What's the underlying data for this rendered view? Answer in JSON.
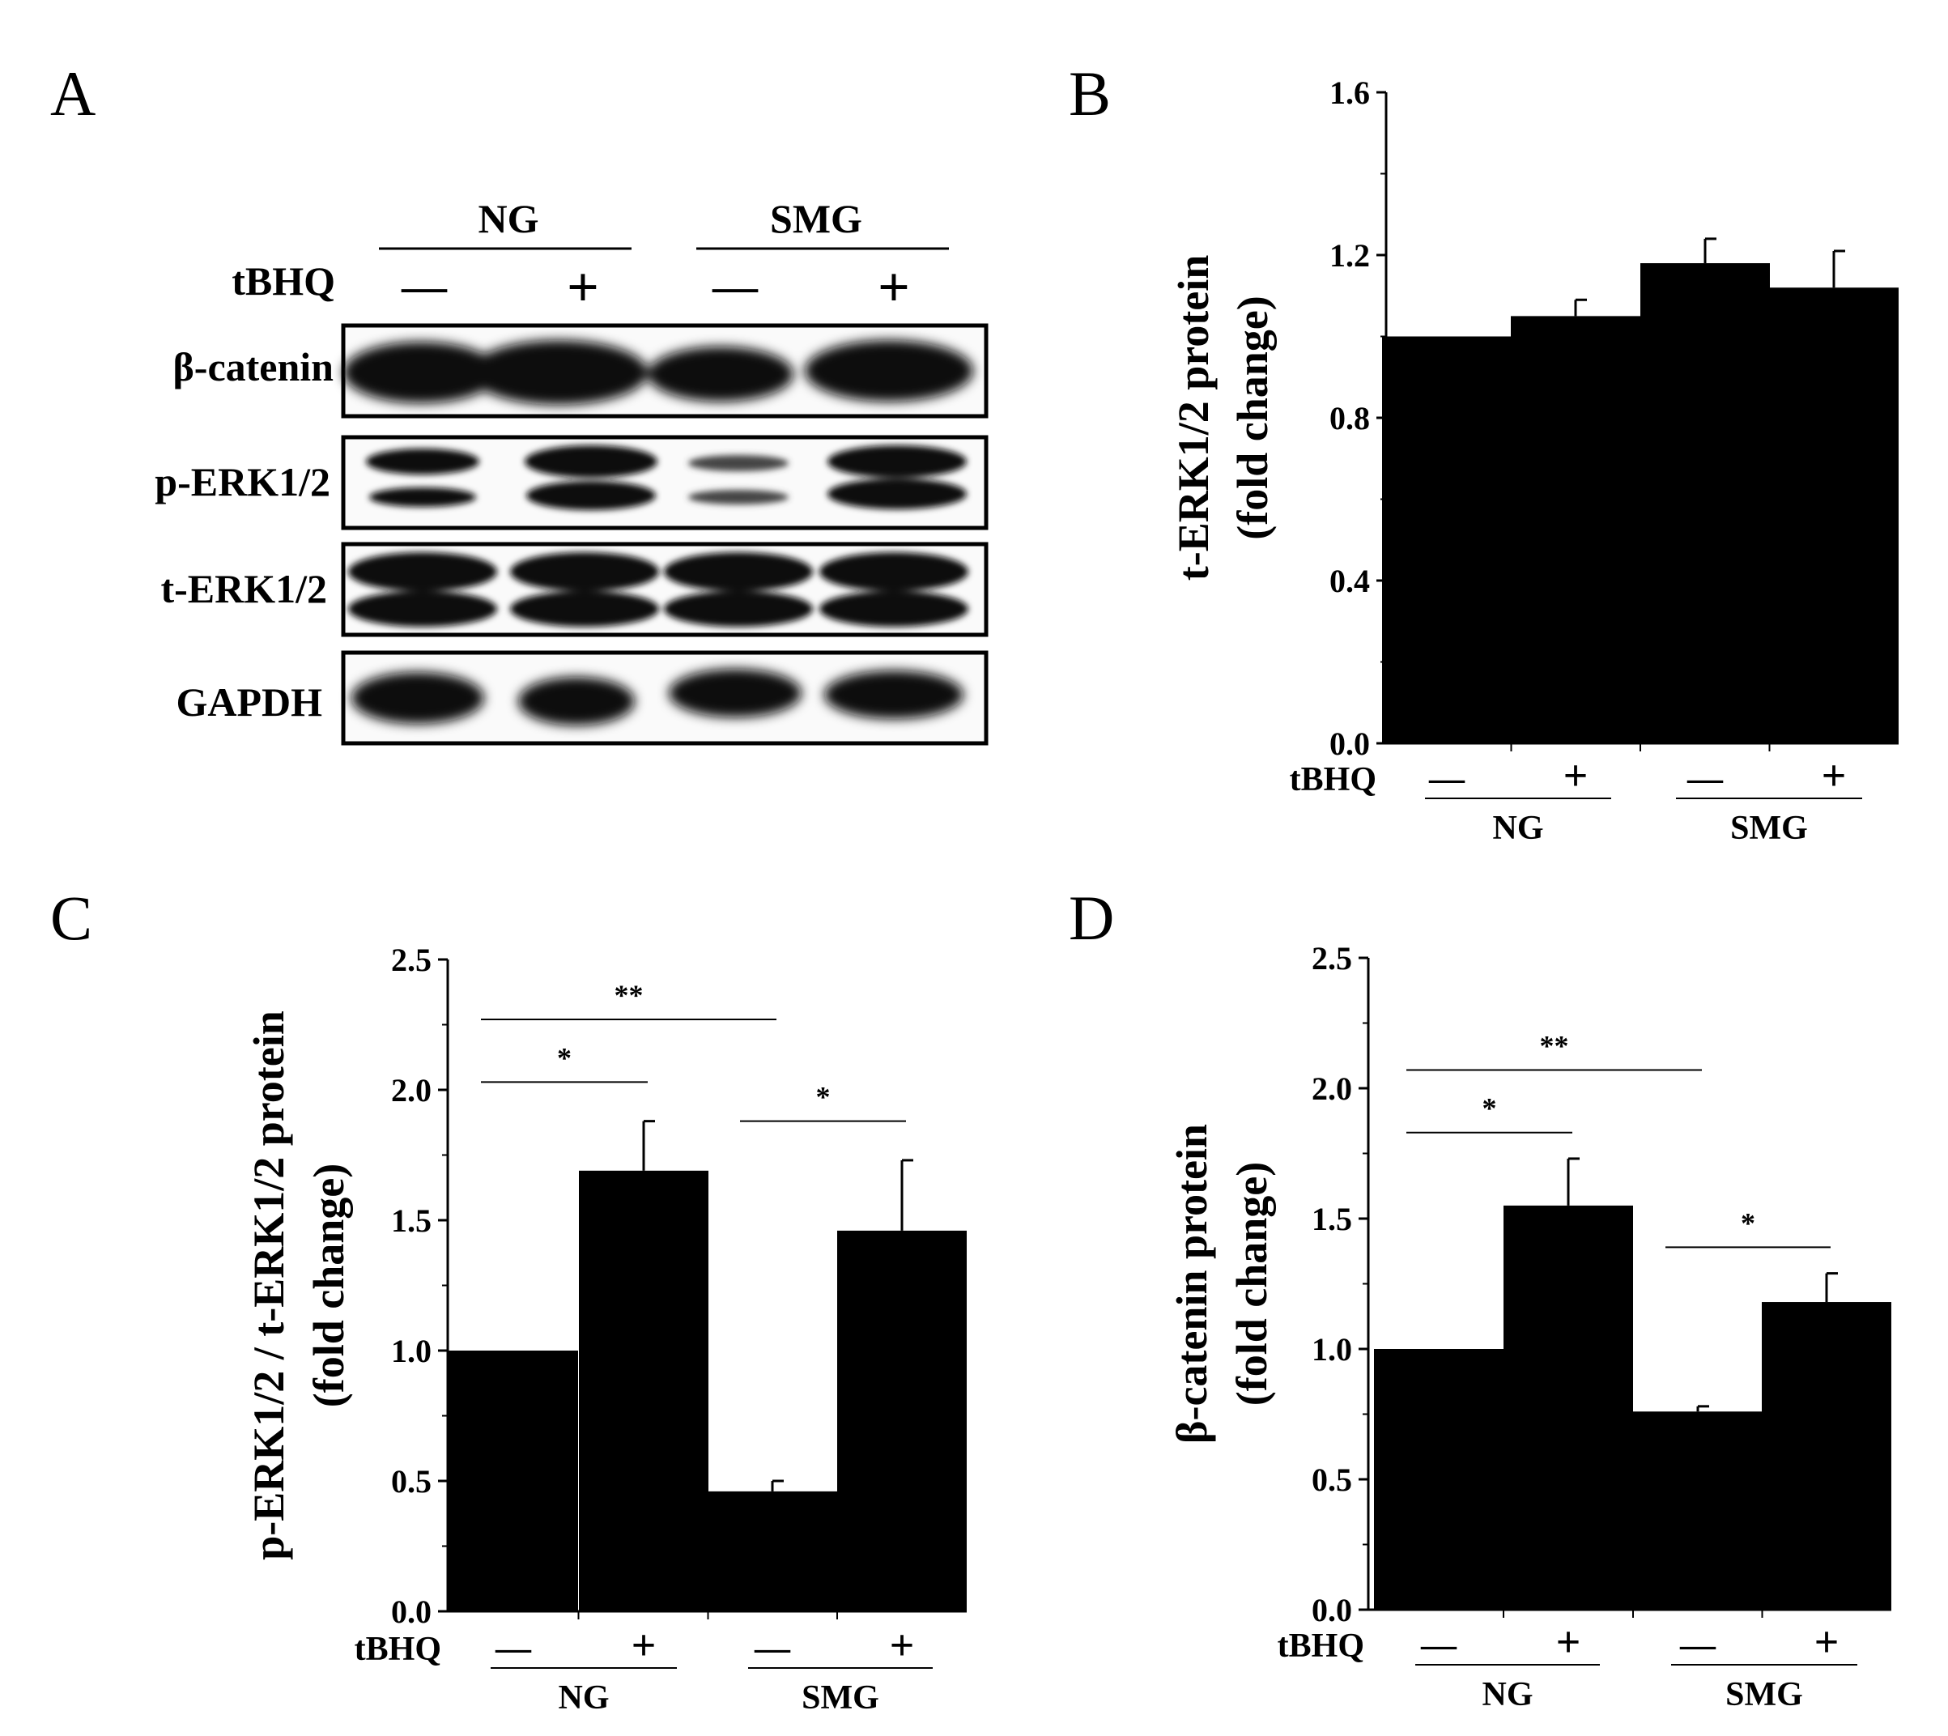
{
  "panels": {
    "A": {
      "letter": "A",
      "group_labels": [
        "NG",
        "SMG"
      ],
      "treatment_label": "tBHQ",
      "treatment_signs": [
        "—",
        "+",
        "—",
        "+"
      ],
      "blot_labels": [
        "β-catenin",
        "p-ERK1/2",
        "t-ERK1/2",
        "GAPDH"
      ]
    },
    "B": {
      "letter": "B"
    },
    "C": {
      "letter": "C"
    },
    "D": {
      "letter": "D"
    }
  },
  "chart_data": [
    {
      "panel": "B",
      "type": "bar",
      "categories": [
        "—",
        "+",
        "—",
        "+"
      ],
      "groups": [
        "NG",
        "SMG"
      ],
      "treatment_label": "tBHQ",
      "values": [
        1.0,
        1.05,
        1.18,
        1.12
      ],
      "errors": [
        0,
        0.04,
        0.06,
        0.09
      ],
      "ylabel": [
        "t-ERK1/2 protein",
        "(fold change)"
      ],
      "ylim": [
        0,
        1.6
      ],
      "yticks": [
        "0.0",
        "0.4",
        "0.8",
        "1.2",
        "1.6"
      ],
      "ytick_values": [
        0,
        0.4,
        0.8,
        1.2,
        1.6
      ],
      "significance": [],
      "bar_color": "#000000"
    },
    {
      "panel": "C",
      "type": "bar",
      "categories": [
        "—",
        "+",
        "—",
        "+"
      ],
      "groups": [
        "NG",
        "SMG"
      ],
      "treatment_label": "tBHQ",
      "values": [
        1.0,
        1.69,
        0.46,
        1.46
      ],
      "errors": [
        0,
        0.19,
        0.04,
        0.27
      ],
      "ylabel": [
        "p-ERK1/2 / t-ERK1/2 protein",
        "(fold change)"
      ],
      "ylim": [
        0,
        2.5
      ],
      "yticks": [
        "0.0",
        "0.5",
        "1.0",
        "1.5",
        "2.0",
        "2.5"
      ],
      "ytick_values": [
        0,
        0.5,
        1.0,
        1.5,
        2.0,
        2.5
      ],
      "significance": [
        {
          "from": 0,
          "to": 2,
          "label": "**",
          "y": 2.27
        },
        {
          "from": 0,
          "to": 1,
          "label": "*",
          "y": 2.03
        },
        {
          "from": 2,
          "to": 3,
          "label": "*",
          "y": 1.88
        }
      ],
      "bar_color": "#000000"
    },
    {
      "panel": "D",
      "type": "bar",
      "categories": [
        "—",
        "+",
        "—",
        "+"
      ],
      "groups": [
        "NG",
        "SMG"
      ],
      "treatment_label": "tBHQ",
      "values": [
        1.0,
        1.55,
        0.76,
        1.18
      ],
      "errors": [
        0,
        0.18,
        0.02,
        0.11
      ],
      "ylabel": [
        "β-catenin protein",
        "(fold change)"
      ],
      "ylim": [
        0,
        2.5
      ],
      "yticks": [
        "0.0",
        "0.5",
        "1.0",
        "1.5",
        "2.0",
        "2.5"
      ],
      "ytick_values": [
        0,
        0.5,
        1.0,
        1.5,
        2.0,
        2.5
      ],
      "significance": [
        {
          "from": 0,
          "to": 2,
          "label": "**",
          "y": 2.07
        },
        {
          "from": 0,
          "to": 1,
          "label": "*",
          "y": 1.83
        },
        {
          "from": 2,
          "to": 3,
          "label": "*",
          "y": 1.39
        }
      ],
      "bar_color": "#000000"
    }
  ]
}
